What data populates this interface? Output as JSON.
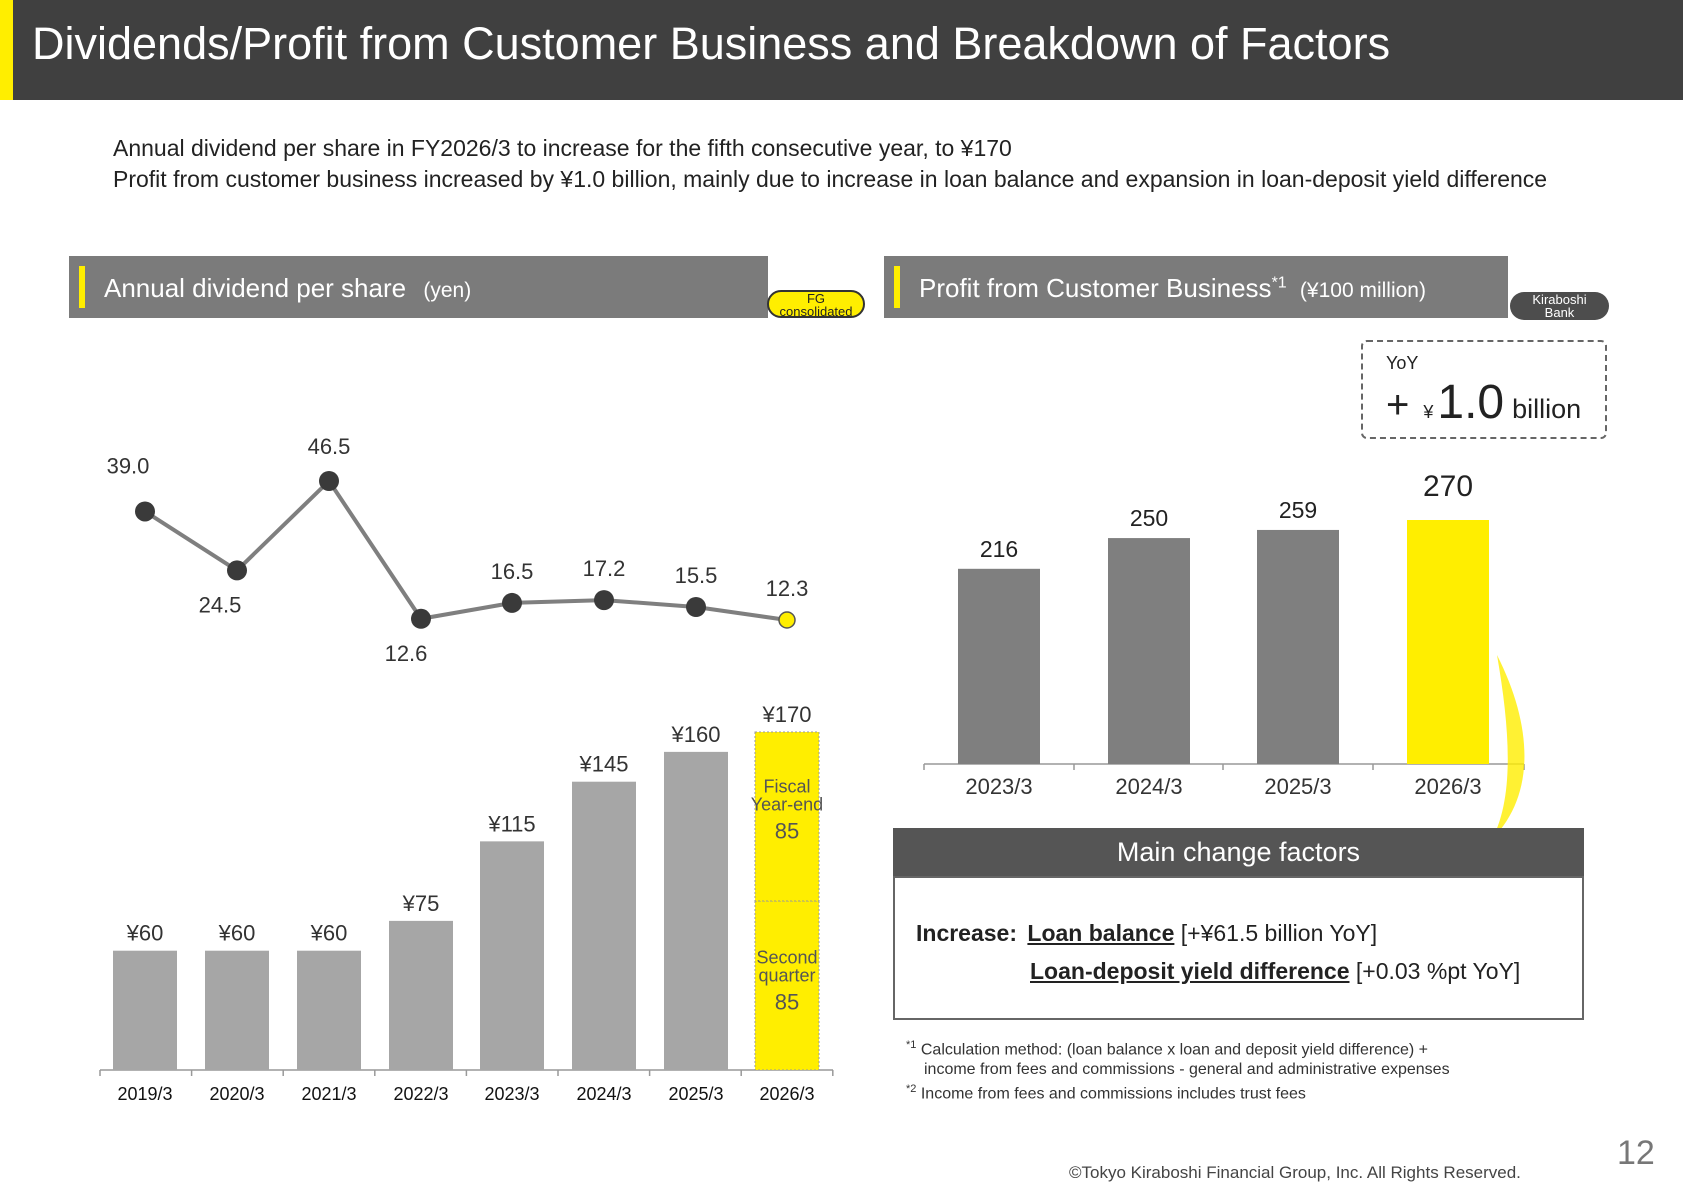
{
  "title": "Dividends/Profit from Customer Business and Breakdown of Factors",
  "intro": {
    "line1": "Annual dividend per share in FY2026/3 to increase for the fifth consecutive year, to ¥170",
    "line2": "Profit from customer business increased by ¥1.0 billion, mainly due to increase in loan balance and expansion in loan-deposit yield difference"
  },
  "left_section": {
    "title": "Annual dividend per share",
    "unit": "(yen)",
    "badge_line1": "FG",
    "badge_line2": "consolidated"
  },
  "right_section": {
    "title": "Profit from Customer Business",
    "title_sup": "*1",
    "unit": "(¥100 million)",
    "badge_line1": "Kiraboshi",
    "badge_line2": "Bank"
  },
  "yoy": {
    "label": "YoY",
    "sign": "+",
    "currency": "¥",
    "value": "1.0",
    "unit": "billion"
  },
  "main_change_factors": {
    "title": "Main change factors",
    "label": "Increase:",
    "item1": "Loan balance",
    "item1_detail": "[+¥61.5 billion YoY]",
    "item2": "Loan-deposit yield difference",
    "item2_detail": "[+0.03 %pt YoY]"
  },
  "footnotes": {
    "fn1_mark": "*1",
    "fn1_line1": "Calculation method: (loan balance x loan and deposit yield difference) +",
    "fn1_line2": "income from fees and commissions - general and administrative expenses",
    "fn2_mark": "*2",
    "fn2": "Income from fees and commissions includes trust fees"
  },
  "page_number": "12",
  "copyright": "©Tokyo Kiraboshi Financial Group, Inc. All Rights Reserved.",
  "colors": {
    "highlight": "#ffee00",
    "bar_gray_left": "#a6a6a6",
    "bar_gray_right": "#7f7f7f",
    "line_gray": "#7f7f7f",
    "dot_dark": "#3a3a3a"
  },
  "chart_data": [
    {
      "type": "line",
      "categories": [
        "2019/3",
        "2020/3",
        "2021/3",
        "2022/3",
        "2023/3",
        "2024/3",
        "2025/3",
        "2026/3"
      ],
      "values": [
        39.0,
        24.5,
        46.5,
        12.6,
        16.5,
        17.2,
        15.5,
        12.3
      ],
      "labels": [
        "39.0",
        "24.5",
        "46.5",
        "12.6",
        "16.5",
        "17.2",
        "15.5",
        "12.3"
      ],
      "highlight_index": 7
    },
    {
      "type": "bar",
      "categories": [
        "2019/3",
        "2020/3",
        "2021/3",
        "2022/3",
        "2023/3",
        "2024/3",
        "2025/3",
        "2026/3"
      ],
      "values": [
        60,
        60,
        60,
        75,
        115,
        145,
        160,
        170
      ],
      "labels": [
        "¥60",
        "¥60",
        "¥60",
        "¥75",
        "¥115",
        "¥145",
        "¥160",
        "¥170"
      ],
      "stacked_last": [
        {
          "name": "Second quarter",
          "label_line1": "Second",
          "label_line2": "quarter",
          "value": 85
        },
        {
          "name": "Fiscal Year-end",
          "label_line1": "Fiscal",
          "label_line2": "Year-end",
          "value": 85
        }
      ]
    },
    {
      "type": "bar",
      "categories": [
        "2023/3",
        "2024/3",
        "2025/3",
        "2026/3"
      ],
      "values": [
        216,
        250,
        259,
        270
      ],
      "labels": [
        "216",
        "250",
        "259",
        "270"
      ],
      "highlight_index": 3
    }
  ]
}
